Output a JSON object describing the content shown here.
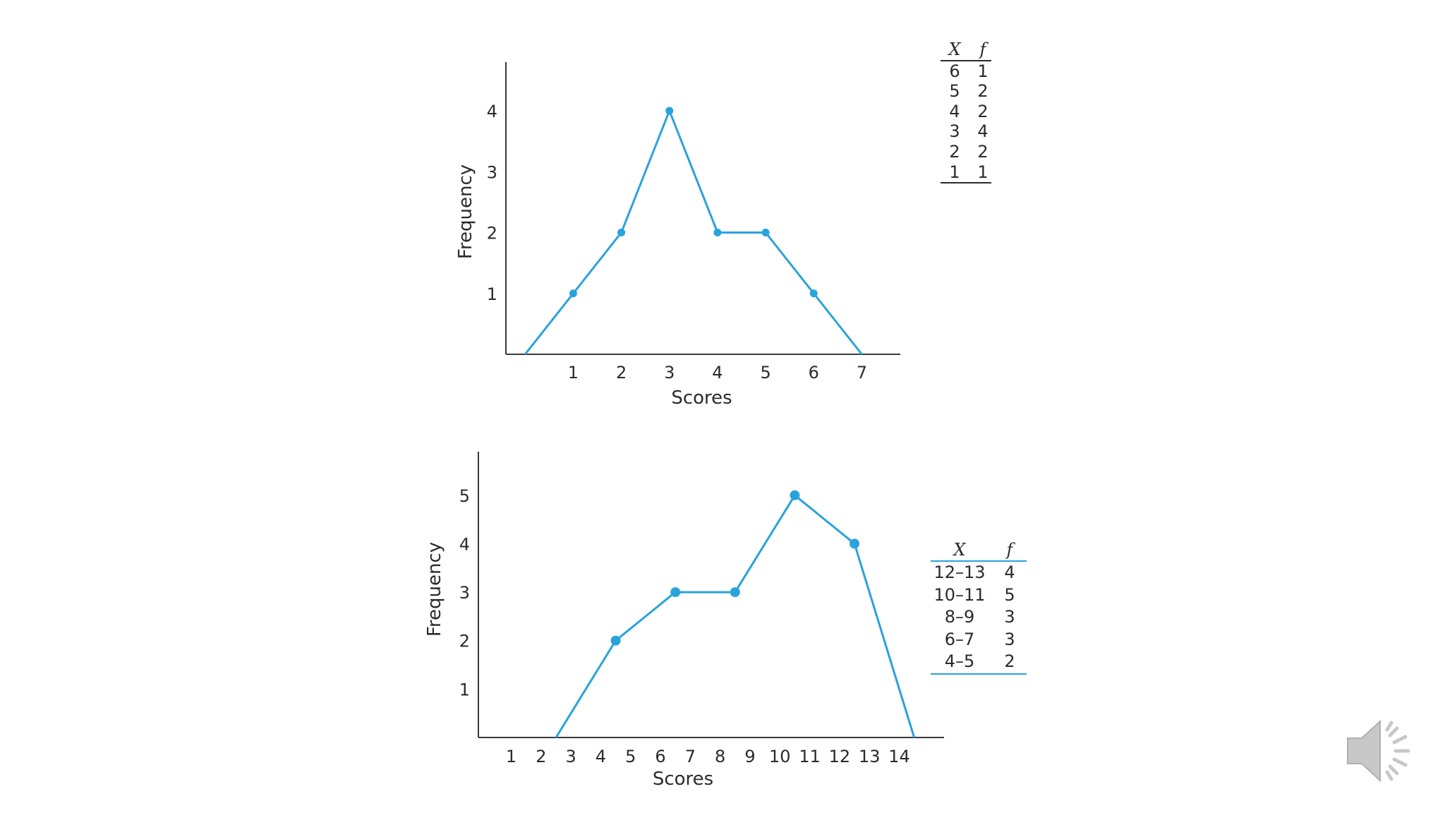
{
  "colors": {
    "line": "#29a3dc",
    "axis": "#3a3a3a",
    "text": "#2b2b2b",
    "icon": "#c8c8c8"
  },
  "chart_data": [
    {
      "type": "line",
      "title": "",
      "xlabel": "Scores",
      "ylabel": "Frequency",
      "x_ticks": [
        "1",
        "2",
        "3",
        "4",
        "5",
        "6",
        "7"
      ],
      "y_ticks": [
        "1",
        "2",
        "3",
        "4"
      ],
      "x": [
        0,
        1,
        2,
        3,
        4,
        5,
        6,
        7
      ],
      "y": [
        0,
        1,
        2,
        4,
        2,
        2,
        1,
        0
      ],
      "xlim": [
        -0.4,
        7.8
      ],
      "ylim": [
        0,
        4.8
      ],
      "grid": false,
      "table": {
        "headers": [
          "X",
          "f"
        ],
        "rows": [
          [
            "6",
            "1"
          ],
          [
            "5",
            "2"
          ],
          [
            "4",
            "2"
          ],
          [
            "3",
            "4"
          ],
          [
            "2",
            "2"
          ],
          [
            "1",
            "1"
          ]
        ]
      }
    },
    {
      "type": "line",
      "title": "",
      "xlabel": "Scores",
      "ylabel": "Frequency",
      "x_ticks": [
        "1",
        "2",
        "3",
        "4",
        "5",
        "6",
        "7",
        "8",
        "9",
        "10",
        "11",
        "12",
        "13",
        "14"
      ],
      "y_ticks": [
        "1",
        "2",
        "3",
        "4",
        "5"
      ],
      "x": [
        2.5,
        4.5,
        6.5,
        8.5,
        10.5,
        12.5,
        14.5
      ],
      "y": [
        0,
        2,
        3,
        3,
        5,
        4,
        0
      ],
      "xlim": [
        -0.1,
        15.5
      ],
      "ylim": [
        0,
        5.9
      ],
      "grid": false,
      "table": {
        "headers": [
          "X",
          "f"
        ],
        "rows": [
          [
            "12–13",
            "4"
          ],
          [
            "10–11",
            "5"
          ],
          [
            "8–9",
            "3"
          ],
          [
            "6–7",
            "3"
          ],
          [
            "4–5",
            "2"
          ]
        ]
      }
    }
  ],
  "audio": {
    "icon": "speaker-icon"
  }
}
